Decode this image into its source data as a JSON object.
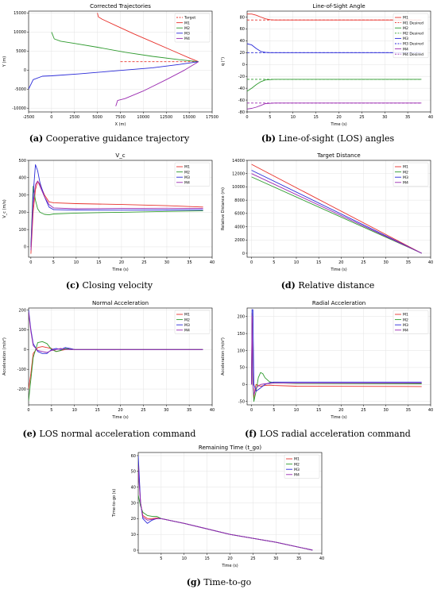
{
  "captions": [
    {
      "tag": "(a)",
      "text": "Cooperative guidance trajectory"
    },
    {
      "tag": "(b)",
      "text": "Line-of-sight (LOS) angles"
    },
    {
      "tag": "(c)",
      "text": "Closing velocity"
    },
    {
      "tag": "(d)",
      "text": "Relative distance"
    },
    {
      "tag": "(e)",
      "text": "LOS normal acceleration command"
    },
    {
      "tag": "(f)",
      "text": "LOS radial acceleration command"
    },
    {
      "tag": "(g)",
      "text": "Time-to-go"
    }
  ],
  "colors": {
    "M1": "#e8322c",
    "M2": "#2e9a2e",
    "M3": "#2a2ad8",
    "M4": "#9a2ab0",
    "Target": "#e8322c"
  },
  "chart_data": [
    {
      "id": "a",
      "type": "line",
      "title": "Corrected Trajectories",
      "xlabel": "X (m)",
      "ylabel": "Y (m)",
      "xlim": [
        -2500,
        17500
      ],
      "ylim": [
        -11000,
        15500
      ],
      "xticks": [
        -2500,
        0,
        2500,
        5000,
        7500,
        10000,
        12500,
        15000,
        17500
      ],
      "yticks": [
        -10000,
        -5000,
        0,
        5000,
        10000,
        15000
      ],
      "legend": "top-right",
      "series": [
        {
          "name": "Target",
          "dash": true,
          "x": [
            7500,
            16000
          ],
          "y": [
            2200,
            2200
          ]
        },
        {
          "name": "M1",
          "x": [
            5000,
            5100,
            5500,
            7000,
            9000,
            11000,
            13000,
            15000,
            16000
          ],
          "y": [
            15000,
            14000,
            13400,
            11700,
            9500,
            7400,
            5300,
            3200,
            2200
          ]
        },
        {
          "name": "M2",
          "x": [
            0,
            300,
            1000,
            2500,
            5000,
            8000,
            11000,
            14000,
            16000
          ],
          "y": [
            10000,
            8200,
            7600,
            7000,
            6000,
            4700,
            3600,
            2700,
            2200
          ]
        },
        {
          "name": "M3",
          "x": [
            -2500,
            -2000,
            -1000,
            0,
            3000,
            7000,
            11000,
            14000,
            16000
          ],
          "y": [
            -5000,
            -2500,
            -1600,
            -1500,
            -1000,
            -200,
            600,
            1500,
            2200
          ]
        },
        {
          "name": "M4",
          "x": [
            7000,
            7200,
            8000,
            10000,
            12500,
            14500,
            16000
          ],
          "y": [
            -9500,
            -8000,
            -7500,
            -5500,
            -2500,
            0,
            2200
          ]
        }
      ]
    },
    {
      "id": "b",
      "type": "line",
      "title": "Line-of-Sight Angle",
      "xlabel": "Time (s)",
      "ylabel": "q (°)",
      "xlim": [
        0,
        40
      ],
      "ylim": [
        -80,
        90
      ],
      "xticks": [
        0,
        5,
        10,
        15,
        20,
        25,
        30,
        35,
        40
      ],
      "yticks": [
        -80,
        -60,
        -40,
        -20,
        0,
        20,
        40,
        60,
        80
      ],
      "legend": "top-right",
      "series": [
        {
          "name": "M1",
          "x": [
            0,
            1,
            2,
            3,
            4,
            5,
            6,
            8,
            38
          ],
          "y": [
            85,
            85,
            83,
            80,
            77,
            75.5,
            75,
            75,
            75
          ]
        },
        {
          "name": "M1 Desired",
          "dash": true,
          "x": [
            0,
            38
          ],
          "y": [
            75,
            75
          ]
        },
        {
          "name": "M2",
          "x": [
            0,
            1,
            2,
            3,
            4,
            5,
            6,
            8,
            38
          ],
          "y": [
            -45,
            -40,
            -34,
            -29,
            -26,
            -25.5,
            -25,
            -25,
            -25
          ]
        },
        {
          "name": "M2 Desired",
          "dash": true,
          "x": [
            0,
            38
          ],
          "y": [
            -25,
            -25
          ]
        },
        {
          "name": "M3",
          "x": [
            0,
            1,
            2,
            3,
            4,
            5,
            6,
            8,
            38
          ],
          "y": [
            35,
            33,
            27,
            22,
            20.5,
            20,
            20,
            20,
            20
          ]
        },
        {
          "name": "M3 Desired",
          "dash": true,
          "x": [
            0,
            38
          ],
          "y": [
            20,
            20
          ]
        },
        {
          "name": "M4",
          "x": [
            0,
            1,
            2,
            3,
            4,
            5,
            6,
            8,
            38
          ],
          "y": [
            -75,
            -74,
            -72,
            -69,
            -66,
            -65.5,
            -65,
            -65,
            -65
          ]
        },
        {
          "name": "M4 Desired",
          "dash": true,
          "x": [
            0,
            38
          ],
          "y": [
            -65,
            -65
          ]
        }
      ]
    },
    {
      "id": "c",
      "type": "line",
      "title": "V_c",
      "xlabel": "Time (s)",
      "ylabel": "V_c (m/s)",
      "xlim": [
        -0.5,
        40
      ],
      "ylim": [
        -60,
        500
      ],
      "xticks": [
        0,
        5,
        10,
        15,
        20,
        25,
        30,
        35,
        40
      ],
      "yticks": [
        0,
        100,
        200,
        300,
        400,
        500
      ],
      "legend": "top-right",
      "series": [
        {
          "name": "M1",
          "x": [
            0,
            0.5,
            1,
            1.5,
            2,
            3,
            4,
            5,
            10,
            20,
            30,
            38
          ],
          "y": [
            -40,
            200,
            330,
            380,
            360,
            300,
            260,
            255,
            250,
            245,
            238,
            230
          ]
        },
        {
          "name": "M2",
          "x": [
            0,
            0.5,
            1,
            1.5,
            2,
            3,
            4,
            5,
            10,
            20,
            30,
            38
          ],
          "y": [
            0,
            350,
            270,
            220,
            200,
            188,
            185,
            190,
            195,
            200,
            205,
            208
          ]
        },
        {
          "name": "M3",
          "x": [
            0,
            0.5,
            1,
            1.5,
            2,
            3,
            4,
            5,
            10,
            20,
            30,
            38
          ],
          "y": [
            0,
            300,
            475,
            440,
            370,
            290,
            230,
            215,
            212,
            212,
            213,
            214
          ]
        },
        {
          "name": "M4",
          "x": [
            0,
            0.5,
            1,
            1.5,
            2,
            3,
            4,
            5,
            10,
            20,
            30,
            38
          ],
          "y": [
            -20,
            250,
            360,
            380,
            350,
            290,
            245,
            225,
            220,
            222,
            223,
            222
          ]
        }
      ]
    },
    {
      "id": "d",
      "type": "line",
      "title": "Target Distance",
      "xlabel": "Time (s)",
      "ylabel": "Relative Distance (m)",
      "xlim": [
        -1,
        40
      ],
      "ylim": [
        -600,
        14000
      ],
      "xticks": [
        0,
        5,
        10,
        15,
        20,
        25,
        30,
        35,
        40
      ],
      "yticks": [
        0,
        2000,
        4000,
        6000,
        8000,
        10000,
        12000,
        14000
      ],
      "legend": "top-right",
      "series": [
        {
          "name": "M1",
          "x": [
            0,
            38
          ],
          "y": [
            13400,
            0
          ]
        },
        {
          "name": "M2",
          "x": [
            0,
            38
          ],
          "y": [
            11500,
            0
          ]
        },
        {
          "name": "M3",
          "x": [
            0,
            38
          ],
          "y": [
            12500,
            0
          ]
        },
        {
          "name": "M4",
          "x": [
            0,
            38
          ],
          "y": [
            12000,
            0
          ]
        }
      ]
    },
    {
      "id": "e",
      "type": "line",
      "title": "Normal Acceleration",
      "xlabel": "Time (s)",
      "ylabel": "Acceleration (m/s²)",
      "xlim": [
        0,
        40
      ],
      "ylim": [
        -280,
        210
      ],
      "xticks": [
        0,
        5,
        10,
        15,
        20,
        25,
        30,
        35,
        40
      ],
      "yticks": [
        -200,
        -100,
        0,
        100,
        200
      ],
      "legend": "top-right",
      "series": [
        {
          "name": "M1",
          "x": [
            0,
            0.5,
            1,
            2,
            3,
            4,
            5,
            6,
            7,
            8,
            9,
            10,
            12,
            38
          ],
          "y": [
            -200,
            -120,
            -20,
            10,
            15,
            10,
            5,
            -10,
            -5,
            0,
            5,
            0,
            0,
            0
          ]
        },
        {
          "name": "M2",
          "x": [
            0,
            0.5,
            1,
            2,
            3,
            4,
            5,
            6,
            7,
            8,
            9,
            10,
            12,
            38
          ],
          "y": [
            -260,
            -150,
            -40,
            35,
            40,
            30,
            0,
            -10,
            -5,
            5,
            0,
            0,
            0,
            0
          ]
        },
        {
          "name": "M3",
          "x": [
            0,
            0.5,
            1,
            2,
            3,
            4,
            5,
            6,
            7,
            8,
            9,
            10,
            12,
            38
          ],
          "y": [
            200,
            100,
            30,
            -10,
            -20,
            -20,
            0,
            5,
            0,
            10,
            5,
            0,
            0,
            0
          ]
        },
        {
          "name": "M4",
          "x": [
            0,
            0.5,
            1,
            2,
            3,
            4,
            5,
            6,
            7,
            8,
            9,
            10,
            12,
            38
          ],
          "y": [
            190,
            90,
            20,
            -5,
            -10,
            -15,
            -5,
            0,
            5,
            0,
            0,
            0,
            0,
            0
          ]
        }
      ]
    },
    {
      "id": "f",
      "type": "line",
      "title": "Radial Acceleration",
      "xlabel": "Time (s)",
      "ylabel": "Acceleration (m/s²)",
      "xlim": [
        -1,
        40
      ],
      "ylim": [
        -60,
        225
      ],
      "xticks": [
        0,
        5,
        10,
        15,
        20,
        25,
        30,
        35,
        40
      ],
      "yticks": [
        -50,
        0,
        50,
        100,
        150,
        200
      ],
      "legend": "top-right",
      "series": [
        {
          "name": "M1",
          "x": [
            0,
            0.1,
            0.3,
            0.5,
            0.8,
            1,
            2,
            3,
            4,
            5,
            10,
            38
          ],
          "y": [
            0,
            210,
            0,
            -40,
            -10,
            0,
            -5,
            -3,
            -2,
            -3,
            -5,
            -6
          ]
        },
        {
          "name": "M2",
          "x": [
            0,
            0.1,
            0.3,
            0.5,
            1,
            1.5,
            2,
            2.5,
            3,
            4,
            5,
            10,
            38
          ],
          "y": [
            0,
            180,
            0,
            -50,
            -20,
            20,
            35,
            32,
            20,
            8,
            5,
            3,
            2
          ]
        },
        {
          "name": "M3",
          "x": [
            0,
            0.1,
            0.3,
            0.5,
            1,
            2,
            3,
            4,
            5,
            10,
            38
          ],
          "y": [
            0,
            220,
            220,
            0,
            -20,
            -10,
            0,
            5,
            7,
            7,
            7
          ]
        },
        {
          "name": "M4",
          "x": [
            0,
            0.1,
            0.3,
            0.5,
            1,
            2,
            3,
            4,
            5,
            10,
            38
          ],
          "y": [
            0,
            200,
            0,
            -30,
            -10,
            0,
            2,
            3,
            4,
            4,
            4
          ]
        }
      ]
    },
    {
      "id": "g",
      "type": "line",
      "title": "Remaining Time (t_go)",
      "xlabel": "Time (s)",
      "ylabel": "Time-to-go (s)",
      "xlim": [
        0,
        40
      ],
      "ylim": [
        -2,
        62
      ],
      "xticks": [
        5,
        10,
        15,
        20,
        25,
        30,
        35,
        40
      ],
      "yticks": [
        0,
        10,
        20,
        30,
        40,
        50,
        60
      ],
      "legend": "top-right",
      "series": [
        {
          "name": "M1",
          "x": [
            0,
            0.5,
            1,
            2,
            3,
            4,
            5,
            10,
            20,
            30,
            38
          ],
          "y": [
            55,
            30,
            22,
            20,
            20,
            20.5,
            20,
            17,
            10,
            5,
            0
          ]
        },
        {
          "name": "M2",
          "x": [
            0,
            0.5,
            1,
            2,
            3,
            4,
            5,
            10,
            20,
            30,
            38
          ],
          "y": [
            35,
            28,
            24,
            22,
            21.5,
            21.5,
            20,
            17,
            10,
            5,
            0
          ]
        },
        {
          "name": "M3",
          "x": [
            0,
            0.5,
            1,
            2,
            3,
            4,
            5,
            10,
            20,
            30,
            38
          ],
          "y": [
            60,
            30,
            20,
            17,
            19,
            20,
            20,
            17,
            10,
            5,
            0
          ]
        },
        {
          "name": "M4",
          "x": [
            0,
            0.5,
            1,
            2,
            3,
            4,
            5,
            10,
            20,
            30,
            38
          ],
          "y": [
            50,
            30,
            21,
            19,
            19.5,
            20,
            20,
            17,
            10,
            5,
            0
          ]
        }
      ]
    }
  ]
}
